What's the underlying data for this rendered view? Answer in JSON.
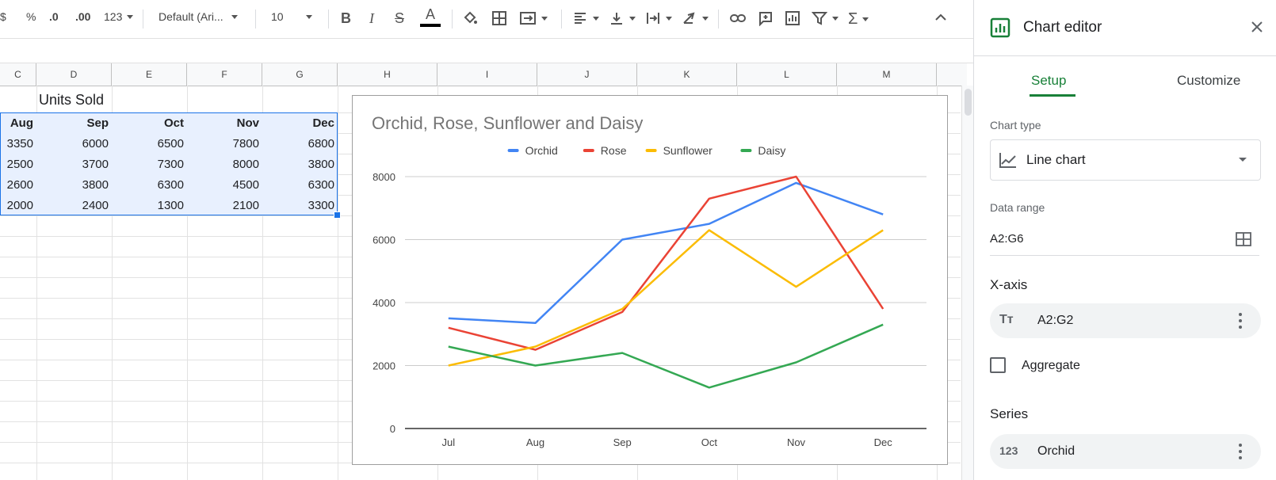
{
  "toolbar": {
    "currency": "$",
    "percent": "%",
    "dec_decrease": ".0",
    "dec_increase": ".00",
    "more_formats": "123",
    "font": "Default (Ari...",
    "font_size": "10"
  },
  "columns": [
    "C",
    "D",
    "E",
    "F",
    "G",
    "H",
    "I",
    "J",
    "K",
    "L",
    "M"
  ],
  "sheet": {
    "title": "Units Sold",
    "header": [
      "Aug",
      "Sep",
      "Oct",
      "Nov",
      "Dec"
    ],
    "rows": [
      [
        "3350",
        "6000",
        "6500",
        "7800",
        "6800"
      ],
      [
        "2500",
        "3700",
        "7300",
        "8000",
        "3800"
      ],
      [
        "2600",
        "3800",
        "6300",
        "4500",
        "6300"
      ],
      [
        "2000",
        "2400",
        "1300",
        "2100",
        "3300"
      ]
    ]
  },
  "chart_data": {
    "type": "line",
    "title": "Orchid, Rose, Sunflower and Daisy",
    "categories": [
      "Jul",
      "Aug",
      "Sep",
      "Oct",
      "Nov",
      "Dec"
    ],
    "series": [
      {
        "name": "Orchid",
        "color": "#4285f4",
        "values": [
          3500,
          3350,
          6000,
          6500,
          7800,
          6800
        ]
      },
      {
        "name": "Rose",
        "color": "#ea4335",
        "values": [
          3200,
          2500,
          3700,
          7300,
          8000,
          3800
        ]
      },
      {
        "name": "Sunflower",
        "color": "#fbbc04",
        "values": [
          2000,
          2600,
          3800,
          6300,
          4500,
          6300
        ]
      },
      {
        "name": "Daisy",
        "color": "#34a853",
        "values": [
          2600,
          2000,
          2400,
          1300,
          2100,
          3300
        ]
      }
    ],
    "yticks": [
      "0",
      "2000",
      "4000",
      "6000",
      "8000"
    ],
    "ylim": [
      0,
      8000
    ],
    "grid": true,
    "legend": "top"
  },
  "panel": {
    "title": "Chart editor",
    "tab_setup": "Setup",
    "tab_customize": "Customize",
    "chart_type_label": "Chart type",
    "chart_type_value": "Line chart",
    "data_range_label": "Data range",
    "data_range_value": "A2:G6",
    "xaxis_label": "X-axis",
    "xaxis_value": "A2:G2",
    "aggregate_label": "Aggregate",
    "series_label": "Series",
    "series_value": "Orchid"
  },
  "colors": {
    "accent_green": "#188038",
    "selection_fill": "#e8f0fe",
    "selection_border": "#1a73e8"
  }
}
